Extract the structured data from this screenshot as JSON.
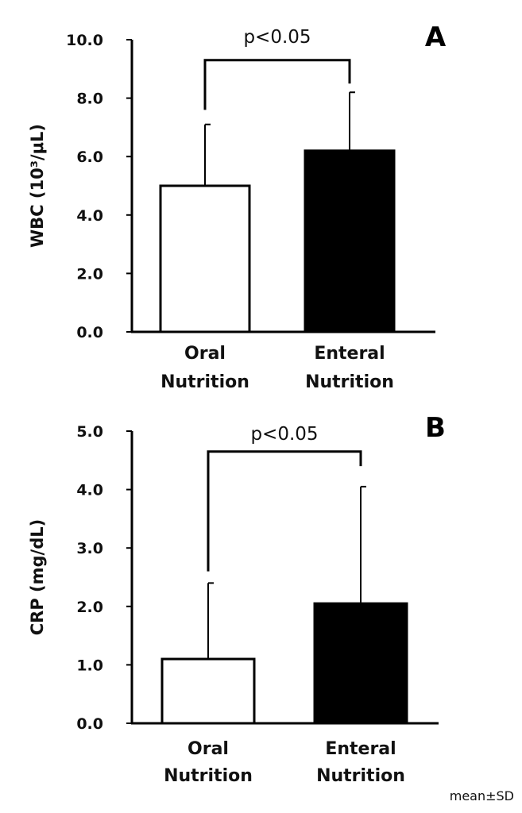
{
  "chart_data": [
    {
      "type": "bar",
      "panel_label": "A",
      "ylabel": "WBC (10³/μL)",
      "ylim": [
        0,
        10
      ],
      "yticks": [
        "0.0",
        "2.0",
        "4.0",
        "6.0",
        "8.0",
        "10.0"
      ],
      "ytick_values": [
        0,
        2,
        4,
        6,
        8,
        10
      ],
      "categories": [
        [
          "Oral",
          "Nutrition"
        ],
        [
          "Enteral",
          "Nutrition"
        ]
      ],
      "values": [
        5.0,
        6.2
      ],
      "errors": [
        2.1,
        2.0
      ],
      "bar_fills": [
        "#ffffff",
        "#000000"
      ],
      "significance": {
        "label": "p<0.05",
        "bracket_height": 9.3,
        "left_drop_to": 7.6,
        "right_drop_to": 8.5
      }
    },
    {
      "type": "bar",
      "panel_label": "B",
      "ylabel": "CRP (mg/dL)",
      "ylim": [
        0,
        5
      ],
      "yticks": [
        "0.0",
        "1.0",
        "2.0",
        "3.0",
        "4.0",
        "5.0"
      ],
      "ytick_values": [
        0,
        1,
        2,
        3,
        4,
        5
      ],
      "categories": [
        [
          "Oral",
          "Nutrition"
        ],
        [
          "Enteral",
          "Nutrition"
        ]
      ],
      "values": [
        1.1,
        2.05
      ],
      "errors": [
        1.3,
        2.0
      ],
      "bar_fills": [
        "#ffffff",
        "#000000"
      ],
      "significance": {
        "label": "p<0.05",
        "bracket_height": 4.65,
        "left_drop_to": 2.6,
        "right_drop_to": 4.4
      }
    }
  ],
  "footnote": "mean±SD",
  "colors": {
    "axis": "#000000",
    "bar_edge": "#000000"
  }
}
